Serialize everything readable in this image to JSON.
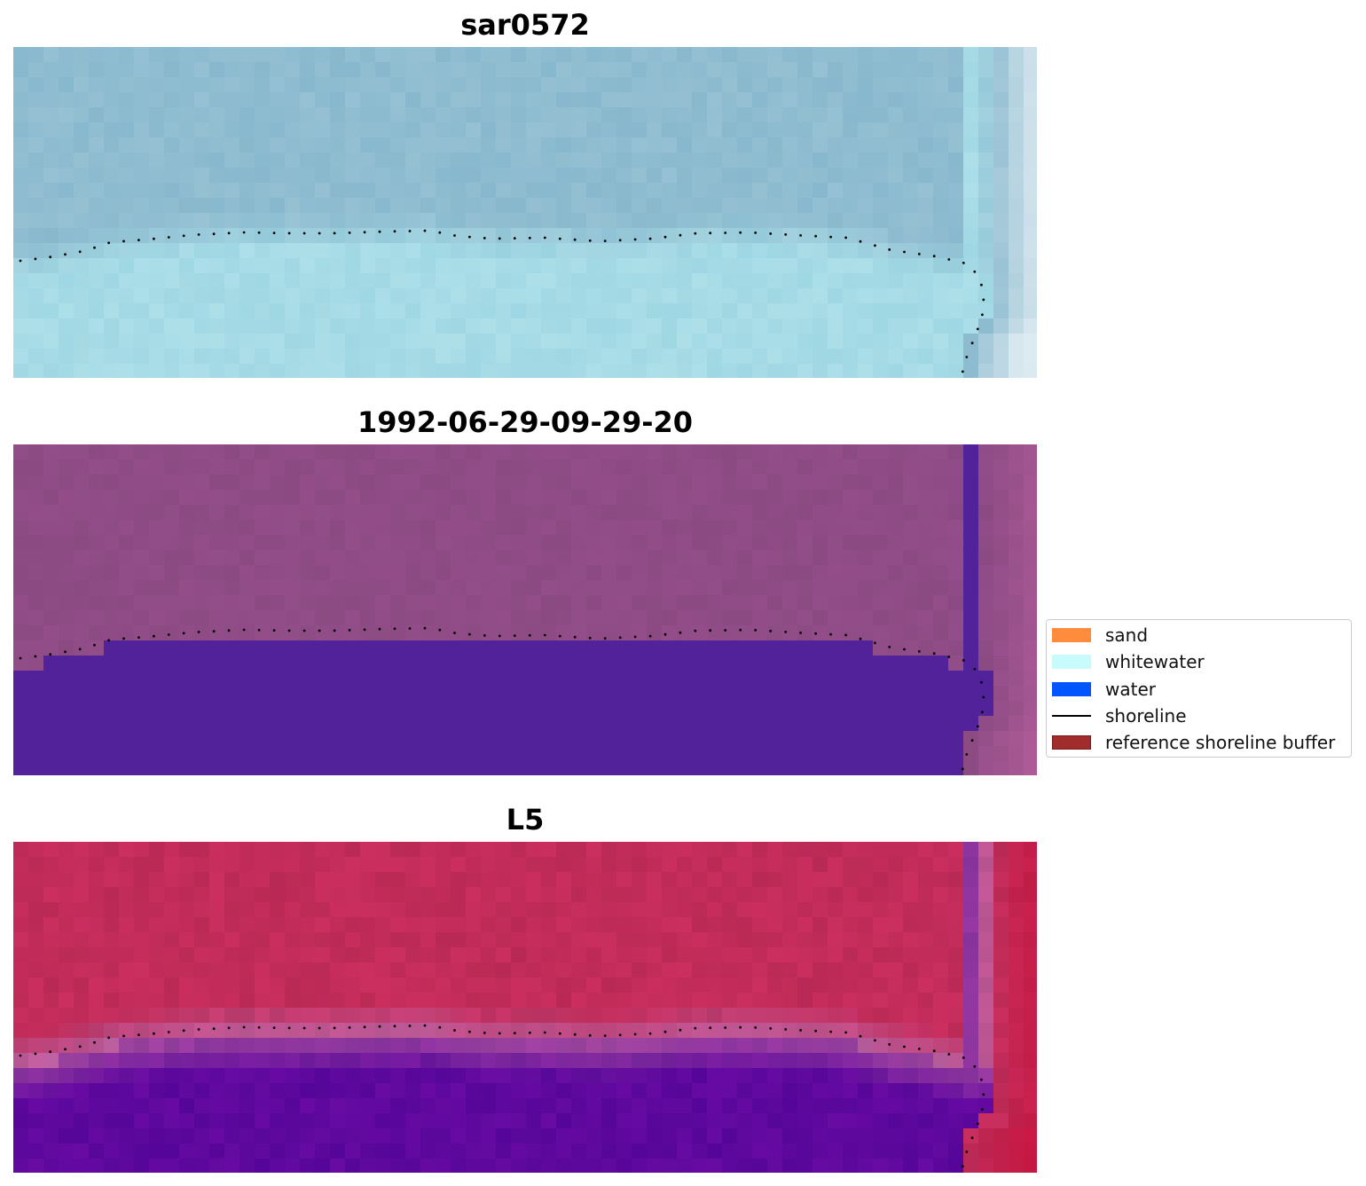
{
  "panels": [
    {
      "title": "sar0572",
      "style": "true-color"
    },
    {
      "title": "1992-06-29-09-29-20",
      "style": "classified"
    },
    {
      "title": "L5",
      "style": "index"
    }
  ],
  "legend": {
    "items": [
      {
        "label": "sand",
        "type": "patch",
        "color": "#ff8c3c"
      },
      {
        "label": "whitewater",
        "type": "patch",
        "color": "#c8fcfc"
      },
      {
        "label": "water",
        "type": "patch",
        "color": "#0055ff"
      },
      {
        "label": "shoreline",
        "type": "line",
        "color": "#000000"
      },
      {
        "label": "reference shoreline buffer",
        "type": "patch",
        "color": "#a02c2c",
        "edge": "#7a1a1a"
      }
    ]
  },
  "colors": {
    "true_color_upper": "#8fbcd0",
    "true_color_lower": "#a6dbe6",
    "class_land": "#8f4c86",
    "class_water": "#52229a",
    "index_land": "#c22c5a",
    "index_water": "#5e089e",
    "shoreline": "#000000"
  }
}
